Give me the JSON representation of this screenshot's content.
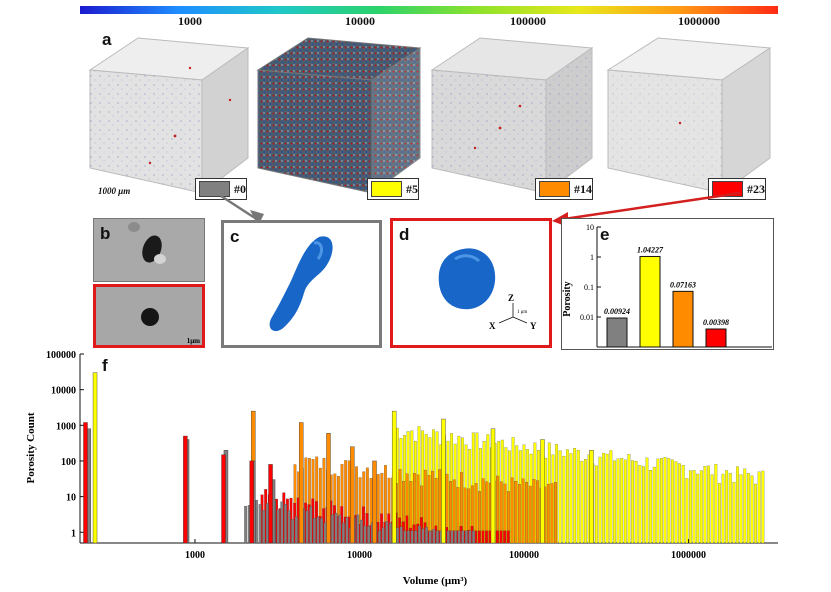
{
  "colorbar": {
    "ticks": [
      "1000",
      "10000",
      "100000",
      "1000000"
    ]
  },
  "panel_a": {
    "label": "a",
    "scale_label": "1000 μm",
    "samples": [
      {
        "tag": "#0",
        "color": "#808080"
      },
      {
        "tag": "#5",
        "color": "#ffff00"
      },
      {
        "tag": "#14",
        "color": "#ff8c00"
      },
      {
        "tag": "#23",
        "color": "#ff0000"
      }
    ]
  },
  "panel_b": {
    "label": "b",
    "scale": "1μm"
  },
  "panel_c": {
    "label": "c"
  },
  "panel_d": {
    "label": "d",
    "axes": {
      "z": "Z",
      "x": "X",
      "y": "Y",
      "scale": "1 μm"
    }
  },
  "chart_data": [
    {
      "id": "e",
      "type": "bar",
      "label": "e",
      "ylabel": "Porosity",
      "yscale": "log",
      "ylim": [
        0.001,
        10
      ],
      "tick_labels": [
        "10",
        "1",
        "0.1",
        "0.01"
      ],
      "categories": [
        "#0",
        "#5",
        "#14",
        "#23"
      ],
      "values": [
        0.00924,
        1.04227,
        0.07163,
        0.00398
      ],
      "value_labels": [
        "0.00924",
        "1.04227",
        "0.07163",
        "0.00398"
      ],
      "colors": [
        "#808080",
        "#ffff00",
        "#ff8c00",
        "#ff0000"
      ]
    },
    {
      "id": "f",
      "type": "bar",
      "label": "f",
      "xlabel": "Volume (μm³)",
      "ylabel": "Porosity Count",
      "xscale": "log",
      "yscale": "log",
      "xlim": [
        200,
        3500000
      ],
      "ylim": [
        0.5,
        100000
      ],
      "x_tick_labels": [
        "1000",
        "10000",
        "100000",
        "1000000"
      ],
      "y_tick_labels": [
        "100000",
        "10000",
        "1000",
        "100",
        "10",
        "1"
      ],
      "series": [
        {
          "name": "#5",
          "color": "#ffff00",
          "x": [
            240,
            15800,
            31500,
            63000,
            126000,
            250000
          ],
          "values": [
            30000,
            2500,
            1500,
            800,
            400,
            200
          ]
        },
        {
          "name": "#14",
          "color": "#ff8c00",
          "x": [
            2200,
            4300,
            6300,
            8800,
            12000
          ],
          "values": [
            2500,
            1200,
            600,
            250,
            100
          ]
        },
        {
          "name": "#0",
          "color": "#808080",
          "x": [
            220,
            870,
            1500,
            2200,
            2900
          ],
          "values": [
            800,
            400,
            200,
            100,
            30
          ]
        },
        {
          "name": "#23",
          "color": "#ff0000",
          "x": [
            210,
            850,
            1450,
            2150,
            2800
          ],
          "values": [
            1200,
            500,
            150,
            100,
            80
          ]
        }
      ]
    }
  ]
}
